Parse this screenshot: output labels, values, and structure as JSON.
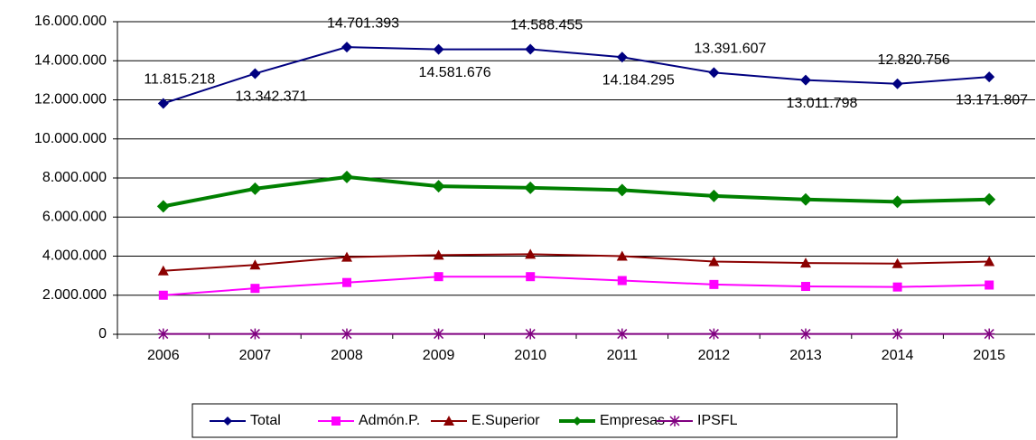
{
  "chart_data": {
    "type": "line",
    "categories": [
      "2006",
      "2007",
      "2008",
      "2009",
      "2010",
      "2011",
      "2012",
      "2013",
      "2014",
      "2015"
    ],
    "series": [
      {
        "name": "Total",
        "color": "#000080",
        "marker": "diamond",
        "line_width": 2,
        "values": [
          11815218,
          13342371,
          14701393,
          14581676,
          14588455,
          14184295,
          13391607,
          13011798,
          12820756,
          13171807
        ],
        "value_labels": [
          "11.815.218",
          "13.342.371",
          "14.701.393",
          "14.581.676",
          "14.588.455",
          "14.184.295",
          "13.391.607",
          "13.011.798",
          "12.820.756",
          "13.171.807"
        ]
      },
      {
        "name": "Admón.P.",
        "color": "#ff00ff",
        "marker": "square",
        "line_width": 2,
        "values": [
          2000000,
          2350000,
          2650000,
          2950000,
          2950000,
          2750000,
          2550000,
          2450000,
          2420000,
          2520000
        ]
      },
      {
        "name": "E.Superior",
        "color": "#8b0000",
        "marker": "triangle",
        "line_width": 2,
        "values": [
          3250000,
          3550000,
          3950000,
          4050000,
          4100000,
          4000000,
          3720000,
          3650000,
          3620000,
          3720000
        ]
      },
      {
        "name": "Empresas",
        "color": "#008000",
        "marker": "diamond",
        "line_width": 4,
        "values": [
          6550000,
          7450000,
          8050000,
          7580000,
          7500000,
          7380000,
          7080000,
          6900000,
          6780000,
          6900000
        ]
      },
      {
        "name": "IPSFL",
        "color": "#800080",
        "marker": "star",
        "line_width": 2,
        "values": [
          20000,
          20000,
          20000,
          20000,
          20000,
          20000,
          20000,
          20000,
          20000,
          20000
        ]
      }
    ],
    "ylim": [
      0,
      16000000
    ],
    "yticks": [
      0,
      {
        "value": 2000000,
        "label": "2.000.000"
      },
      {
        "value": 4000000,
        "label": "4.000.000"
      },
      {
        "value": 6000000,
        "label": "6.000.000"
      },
      {
        "value": 8000000,
        "label": "8.000.000"
      },
      {
        "value": 10000000,
        "label": "10.000.000"
      },
      {
        "value": 12000000,
        "label": "12.000.000"
      },
      {
        "value": 14000000,
        "label": "14.000.000"
      },
      {
        "value": 16000000,
        "label": "16.000.000"
      }
    ],
    "grid": true,
    "legend": "bottom"
  }
}
